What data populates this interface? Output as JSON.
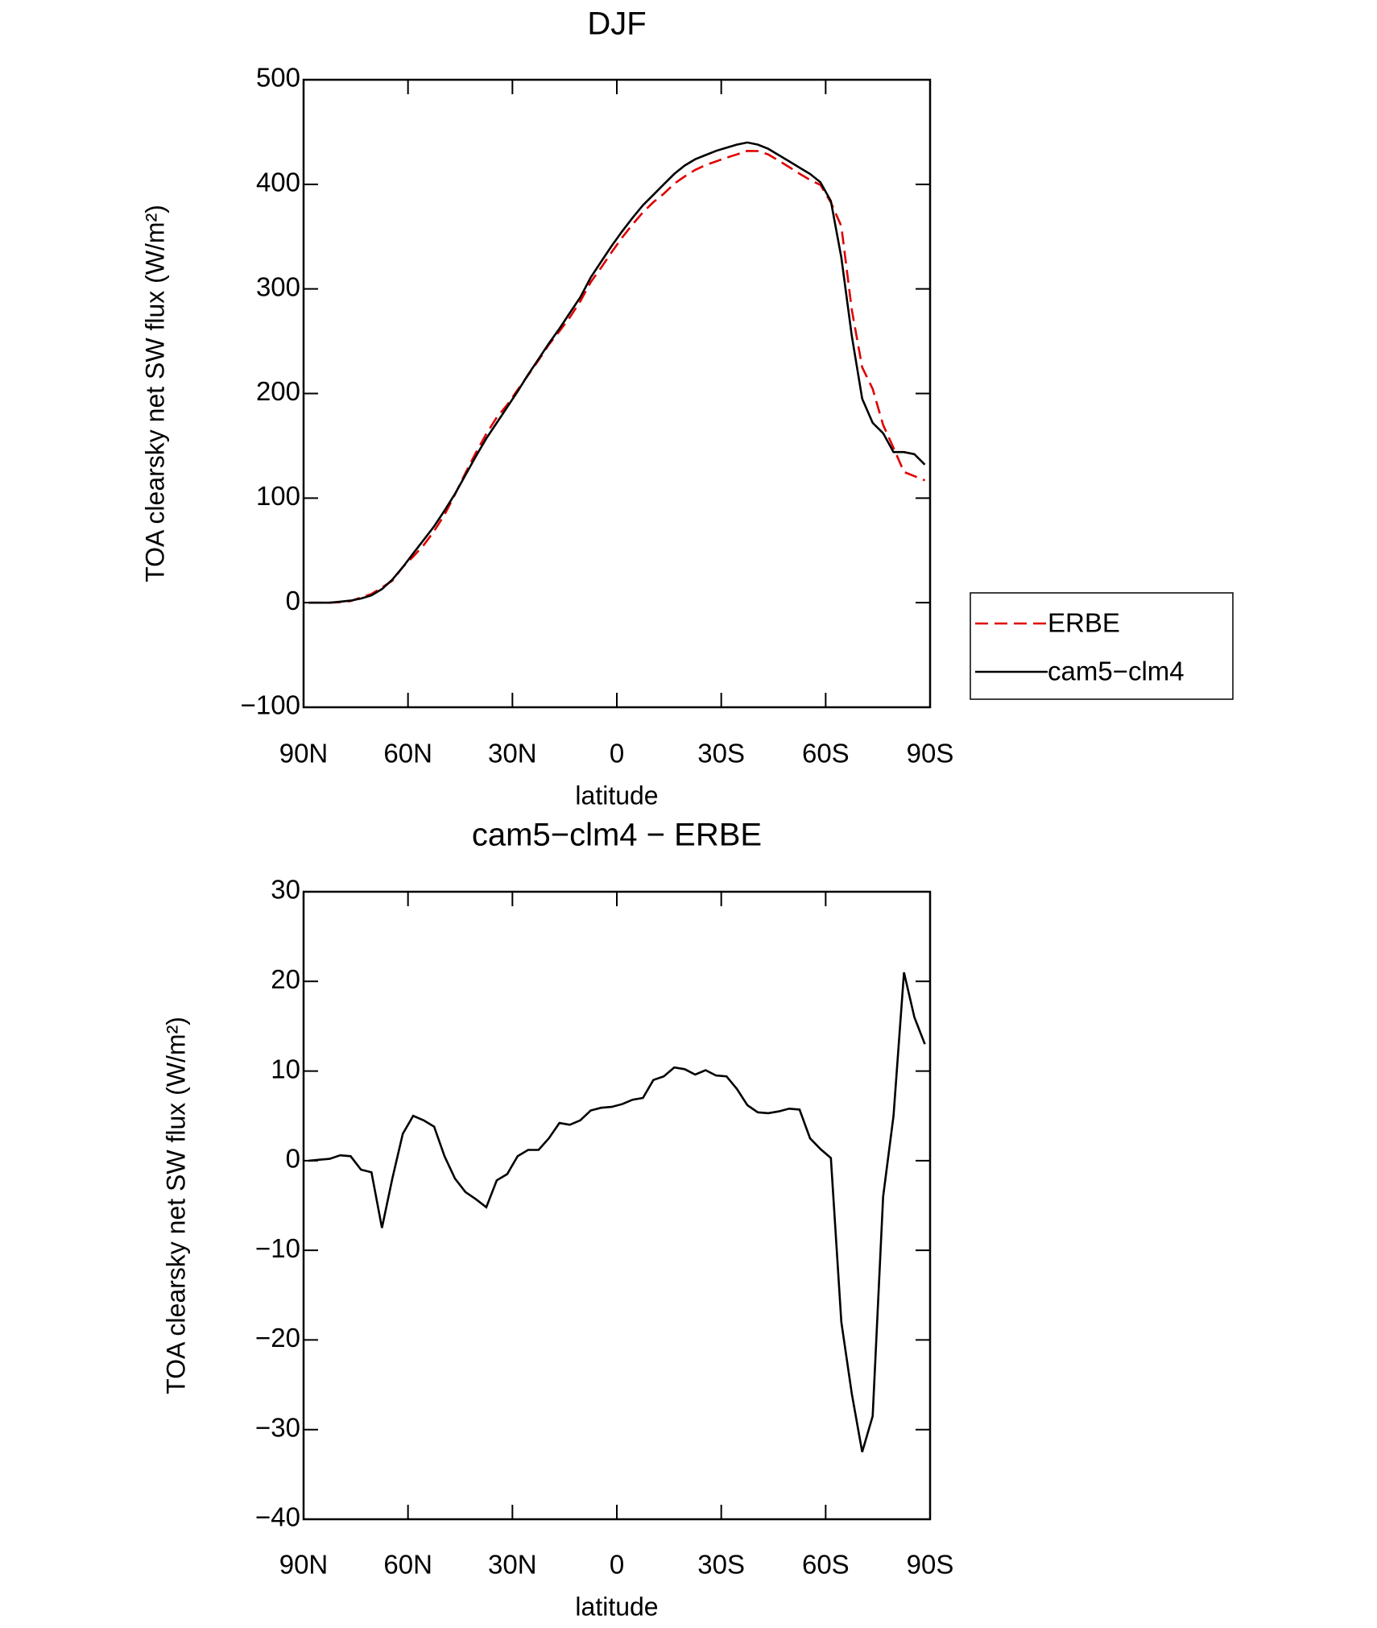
{
  "chart_data": [
    {
      "type": "line",
      "title": "DJF",
      "x_label": "latitude",
      "y_label": "TOA clearsky net SW flux (W/m²)",
      "x": [
        88.5,
        85.5,
        82.5,
        79.5,
        76.5,
        73.5,
        70.5,
        67.5,
        64.5,
        61.5,
        58.5,
        55.5,
        52.5,
        49.5,
        46.5,
        43.5,
        40.5,
        37.5,
        34.5,
        31.5,
        28.5,
        25.5,
        22.5,
        19.5,
        16.5,
        13.5,
        10.5,
        7.5,
        4.5,
        1.5,
        -1.5,
        -4.5,
        -7.5,
        -10.5,
        -13.5,
        -16.5,
        -19.5,
        -22.5,
        -25.5,
        -28.5,
        -31.5,
        -34.5,
        -37.5,
        -40.5,
        -43.5,
        -46.5,
        -49.5,
        -52.5,
        -55.5,
        -58.5,
        -61.5,
        -64.5,
        -67.5,
        -70.5,
        -73.5,
        -76.5,
        -79.5,
        -82.5,
        -85.5,
        -88.5
      ],
      "series": [
        {
          "name": "ERBE",
          "color": "#e00000",
          "dashed": true,
          "values": [
            0,
            0,
            0,
            0.4,
            1.5,
            5,
            8.3,
            14.5,
            21,
            34,
            44,
            55,
            68.5,
            84,
            103.5,
            124,
            143.5,
            161.3,
            177.2,
            189.2,
            203.5,
            217.5,
            231.8,
            246.8,
            259.5,
            272.8,
            288,
            306.5,
            320.4,
            335.1,
            349,
            361.7,
            373.2,
            383,
            391,
            400.6,
            407.6,
            413.8,
            418.4,
            421.9,
            425.5,
            428.6,
            432,
            431.8,
            428.6,
            422.7,
            416.5,
            410.2,
            404.3,
            399.5,
            382.7,
            360,
            280,
            225,
            204.5,
            170,
            148,
            125,
            121,
            117
          ]
        },
        {
          "name": "cam5−clm4",
          "color": "#000000",
          "dashed": false,
          "values": [
            0,
            0,
            0,
            1,
            2,
            4,
            7,
            13,
            22,
            34,
            47,
            60,
            73,
            88,
            104,
            122,
            140,
            157,
            172,
            187,
            202,
            218,
            233,
            248,
            262,
            277,
            292,
            311,
            326,
            341,
            355,
            368,
            380,
            390,
            400,
            410,
            418,
            424,
            428,
            432,
            435,
            438,
            440,
            438,
            434,
            428,
            422,
            416,
            410,
            402,
            384,
            330,
            255,
            195,
            172,
            162,
            144,
            144,
            142,
            132
          ]
        }
      ],
      "xlim": [
        90,
        -90
      ],
      "xticks": [
        {
          "value": 90,
          "label": "90N"
        },
        {
          "value": 60,
          "label": "60N"
        },
        {
          "value": 30,
          "label": "30N"
        },
        0,
        {
          "value": -30,
          "label": "30S"
        },
        {
          "value": -60,
          "label": "60S"
        },
        {
          "value": -90,
          "label": "90S"
        }
      ],
      "ylim": [
        -100,
        500
      ],
      "yticks": [
        {
          "value": -100,
          "label": "−100"
        },
        0,
        100,
        200,
        300,
        400,
        500
      ],
      "legend": "outside-right"
    },
    {
      "type": "line",
      "title": "cam5−clm4 − ERBE",
      "x_label": "latitude",
      "y_label": "TOA clearsky net SW flux (W/m²)",
      "x": [
        88.5,
        85.5,
        82.5,
        79.5,
        76.5,
        73.5,
        70.5,
        67.5,
        64.5,
        61.5,
        58.5,
        55.5,
        52.5,
        49.5,
        46.5,
        43.5,
        40.5,
        37.5,
        34.5,
        31.5,
        28.5,
        25.5,
        22.5,
        19.5,
        16.5,
        13.5,
        10.5,
        7.5,
        4.5,
        1.5,
        -1.5,
        -4.5,
        -7.5,
        -10.5,
        -13.5,
        -16.5,
        -19.5,
        -22.5,
        -25.5,
        -28.5,
        -31.5,
        -34.5,
        -37.5,
        -40.5,
        -43.5,
        -46.5,
        -49.5,
        -52.5,
        -55.5,
        -58.5,
        -61.5,
        -64.5,
        -67.5,
        -70.5,
        -73.5,
        -76.5,
        -79.5,
        -82.5,
        -85.5,
        -88.5
      ],
      "values": [
        0,
        0.1,
        0.2,
        0.6,
        0.5,
        -1,
        -1.3,
        -7.5,
        -2,
        3,
        5,
        4.5,
        3.8,
        0.5,
        -2,
        -3.5,
        -4.3,
        -5.2,
        -2.2,
        -1.5,
        0.5,
        1.2,
        1.2,
        2.5,
        4.2,
        4,
        4.5,
        5.6,
        5.9,
        6,
        6.3,
        6.8,
        7,
        9,
        9.4,
        10.4,
        10.2,
        9.6,
        10.1,
        9.5,
        9.4,
        8,
        6.2,
        5.4,
        5.3,
        5.5,
        5.8,
        5.7,
        2.5,
        1.3,
        0.3,
        -18,
        -26,
        -32.5,
        -28.5,
        -4,
        5,
        21,
        16,
        13
      ],
      "color": "#000000",
      "xlim": [
        90,
        -90
      ],
      "xticks": [
        {
          "value": 90,
          "label": "90N"
        },
        {
          "value": 60,
          "label": "60N"
        },
        {
          "value": 30,
          "label": "30N"
        },
        0,
        {
          "value": -30,
          "label": "30S"
        },
        {
          "value": -60,
          "label": "60S"
        },
        {
          "value": -90,
          "label": "90S"
        }
      ],
      "ylim": [
        -40,
        30
      ],
      "yticks": [
        {
          "value": -40,
          "label": "−40"
        },
        {
          "value": -30,
          "label": "−30"
        },
        {
          "value": -20,
          "label": "−20"
        },
        {
          "value": -10,
          "label": "−10"
        },
        0,
        10,
        20,
        30
      ]
    }
  ]
}
